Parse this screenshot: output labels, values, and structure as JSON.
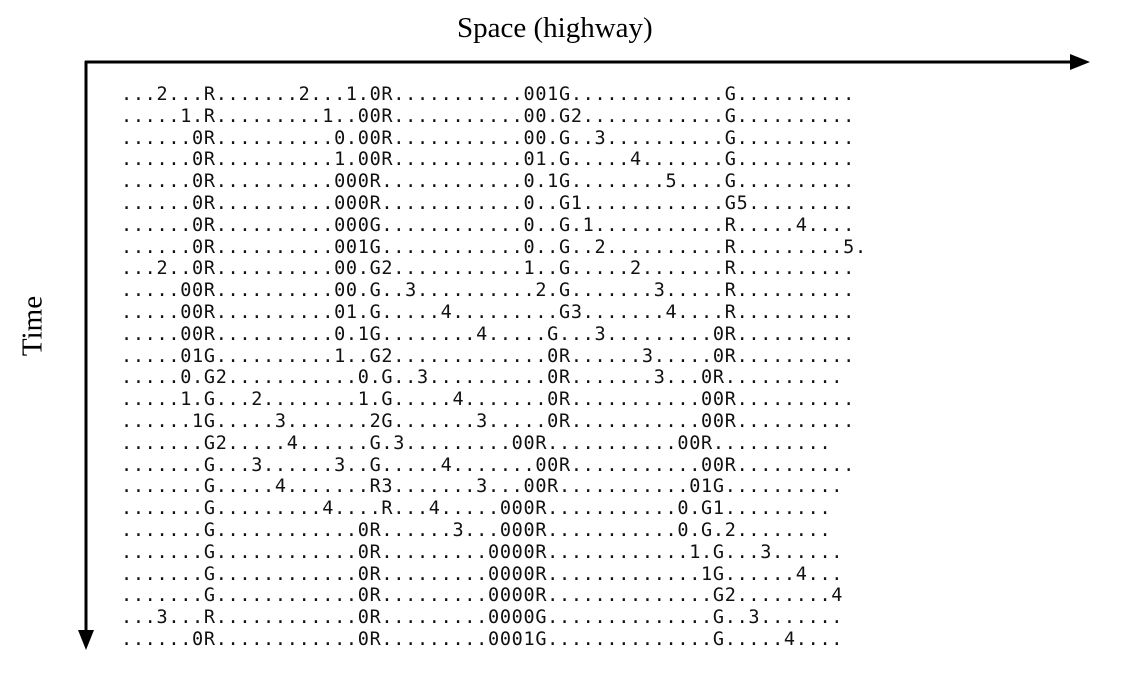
{
  "axes": {
    "x_label": "Space (highway)",
    "y_label": "Time"
  },
  "rows": [
    "...2...R.......2...1.0R...........001G.............G..........",
    ".....1.R.........1..00R...........00.G2............G..........",
    "......0R..........0.00R...........00.G..3..........G..........",
    "......0R..........1.00R...........01.G.....4.......G..........",
    "......0R..........000R............0.1G........5....G..........",
    "......0R..........000R............0..G1............G5.........",
    "......0R..........000G............0..G.1...........R.....4....",
    "......0R..........001G............0..G..2..........R.........5.",
    "...2..0R..........00.G2...........1..G.....2.......R..........",
    ".....00R..........00.G..3..........2.G.......3.....R..........",
    ".....00R..........01.G.....4.........G3.......4....R..........",
    ".....00R..........0.1G........4.....G...3.........0R..........",
    ".....01G..........1..G2.............0R......3.....0R..........",
    ".....0.G2...........0.G..3..........0R.......3...0R..........",
    ".....1.G...2........1.G.....4.......0R...........00R..........",
    "......1G.....3.......2G.......3.....0R...........00R..........",
    ".......G2.....4......G.3.........00R...........00R..........",
    ".......G...3......3..G.....4.......00R...........00R..........",
    ".......G.....4.......R3.......3...00R...........01G..........",
    ".......G.........4....R...4.....000R...........0.G1.........",
    ".......G............0R......3...000R...........0.G.2........",
    ".......G............0R.........0000R............1.G...3......",
    ".......G............0R.........0000R.............1G......4...",
    ".......G............0R.........0000R..............G2........4",
    "...3...R............0R.........0000G..............G..3.......",
    "......0R............0R.........0001G..............G.....4...."
  ]
}
